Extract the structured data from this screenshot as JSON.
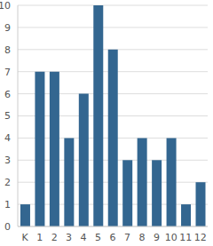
{
  "chart_data": {
    "type": "bar",
    "categories": [
      "K",
      "1",
      "2",
      "3",
      "4",
      "5",
      "6",
      "7",
      "8",
      "9",
      "10",
      "11",
      "12"
    ],
    "values": [
      1,
      7,
      7,
      4,
      6,
      10,
      8,
      3,
      4,
      3,
      4,
      1,
      2
    ],
    "color": "#336690",
    "ylim": [
      0,
      10
    ],
    "yticks": [
      0,
      1,
      2,
      3,
      4,
      5,
      6,
      7,
      8,
      9,
      10
    ],
    "grid": true
  }
}
